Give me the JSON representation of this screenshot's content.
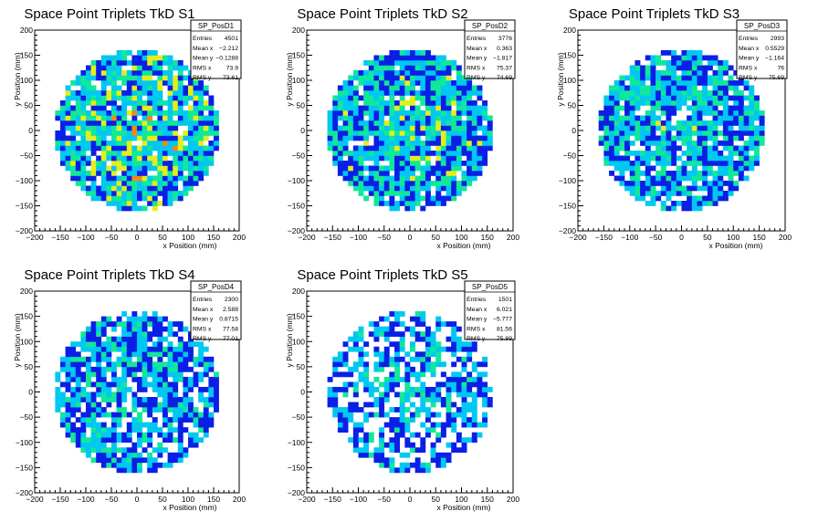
{
  "palette": [
    "#0a1fe6",
    "#00c8f0",
    "#10e89a",
    "#e6ee1a",
    "#f08a12",
    "#d81a1a"
  ],
  "chart_data": [
    {
      "type": "heatmap",
      "title": "Space Point Triplets TkD S1",
      "xlabel": "x Position (mm)",
      "ylabel": "y Position (mm)",
      "xlim": [
        -200,
        200
      ],
      "ylim": [
        -200,
        200
      ],
      "xticks": [
        "−200",
        "−150",
        "−100",
        "−50",
        "0",
        "50",
        "100",
        "150",
        "200"
      ],
      "yticks": [
        "200",
        "150",
        "100",
        "50",
        "0",
        "−50",
        "−100",
        "−150",
        "−200"
      ],
      "bin_size_mm": 10,
      "fill_radius_mm": 160,
      "density": 0.93,
      "intensity": 0.55,
      "seed": 11,
      "stats": {
        "name": "SP_PosD1",
        "rows": [
          {
            "label": "Entries",
            "value": "4501"
          },
          {
            "label": "Mean x",
            "value": "−2.212"
          },
          {
            "label": "Mean y",
            "value": "−0.1288"
          },
          {
            "label": "RMS x",
            "value": "73.9"
          },
          {
            "label": "RMS y",
            "value": "73.61"
          }
        ]
      }
    },
    {
      "type": "heatmap",
      "title": "Space Point Triplets TkD S2",
      "xlabel": "x Position (mm)",
      "ylabel": "y Position (mm)",
      "xlim": [
        -200,
        200
      ],
      "ylim": [
        -200,
        200
      ],
      "xticks": [
        "−200",
        "−150",
        "−100",
        "−50",
        "0",
        "50",
        "100",
        "150",
        "200"
      ],
      "yticks": [
        "200",
        "150",
        "100",
        "50",
        "0",
        "−50",
        "−100",
        "−150",
        "−200"
      ],
      "bin_size_mm": 10,
      "fill_radius_mm": 160,
      "density": 0.9,
      "intensity": 0.45,
      "seed": 23,
      "stats": {
        "name": "SP_PosD2",
        "rows": [
          {
            "label": "Entries",
            "value": "3776"
          },
          {
            "label": "Mean x",
            "value": "0.363"
          },
          {
            "label": "Mean y",
            "value": "−1.817"
          },
          {
            "label": "RMS x",
            "value": "75.37"
          },
          {
            "label": "RMS y",
            "value": "74.69"
          }
        ]
      }
    },
    {
      "type": "heatmap",
      "title": "Space Point Triplets TkD S3",
      "xlabel": "x Position (mm)",
      "ylabel": "y Position (mm)",
      "xlim": [
        -200,
        200
      ],
      "ylim": [
        -200,
        200
      ],
      "xticks": [
        "−200",
        "−150",
        "−100",
        "−50",
        "0",
        "50",
        "100",
        "150",
        "200"
      ],
      "yticks": [
        "200",
        "150",
        "100",
        "50",
        "0",
        "−50",
        "−100",
        "−150",
        "−200"
      ],
      "bin_size_mm": 10,
      "fill_radius_mm": 160,
      "density": 0.85,
      "intensity": 0.38,
      "seed": 37,
      "stats": {
        "name": "SP_PosD3",
        "rows": [
          {
            "label": "Entries",
            "value": "2993"
          },
          {
            "label": "Mean x",
            "value": "0.5529"
          },
          {
            "label": "Mean y",
            "value": "−1.164"
          },
          {
            "label": "RMS x",
            "value": "76"
          },
          {
            "label": "RMS y",
            "value": "75.69"
          }
        ]
      }
    },
    {
      "type": "heatmap",
      "title": "Space Point Triplets TkD S4",
      "xlabel": "x Position (mm)",
      "ylabel": "y Position (mm)",
      "xlim": [
        -200,
        200
      ],
      "ylim": [
        -200,
        200
      ],
      "xticks": [
        "−200",
        "−150",
        "−100",
        "−50",
        "0",
        "50",
        "100",
        "150",
        "200"
      ],
      "yticks": [
        "200",
        "150",
        "100",
        "50",
        "0",
        "−50",
        "−100",
        "−150",
        "−200"
      ],
      "bin_size_mm": 10,
      "fill_radius_mm": 160,
      "density": 0.8,
      "intensity": 0.3,
      "seed": 53,
      "stats": {
        "name": "SP_PosD4",
        "rows": [
          {
            "label": "Entries",
            "value": "2300"
          },
          {
            "label": "Mean x",
            "value": "2.588"
          },
          {
            "label": "Mean y",
            "value": "0.8715"
          },
          {
            "label": "RMS x",
            "value": "77.58"
          },
          {
            "label": "RMS y",
            "value": "77.01"
          }
        ]
      }
    },
    {
      "type": "heatmap",
      "title": "Space Point Triplets TkD S5",
      "xlabel": "x Position (mm)",
      "ylabel": "y Position (mm)",
      "xlim": [
        -200,
        200
      ],
      "ylim": [
        -200,
        200
      ],
      "xticks": [
        "−200",
        "−150",
        "−100",
        "−50",
        "0",
        "50",
        "100",
        "150",
        "200"
      ],
      "yticks": [
        "200",
        "150",
        "100",
        "50",
        "0",
        "−50",
        "−100",
        "−150",
        "−200"
      ],
      "bin_size_mm": 10,
      "fill_radius_mm": 160,
      "density": 0.62,
      "intensity": 0.22,
      "seed": 71,
      "stats": {
        "name": "SP_PosD5",
        "rows": [
          {
            "label": "Entries",
            "value": "1501"
          },
          {
            "label": "Mean x",
            "value": "6.021"
          },
          {
            "label": "Mean y",
            "value": "−5.777"
          },
          {
            "label": "RMS x",
            "value": "81.56"
          },
          {
            "label": "RMS y",
            "value": "75.89"
          }
        ]
      }
    }
  ]
}
